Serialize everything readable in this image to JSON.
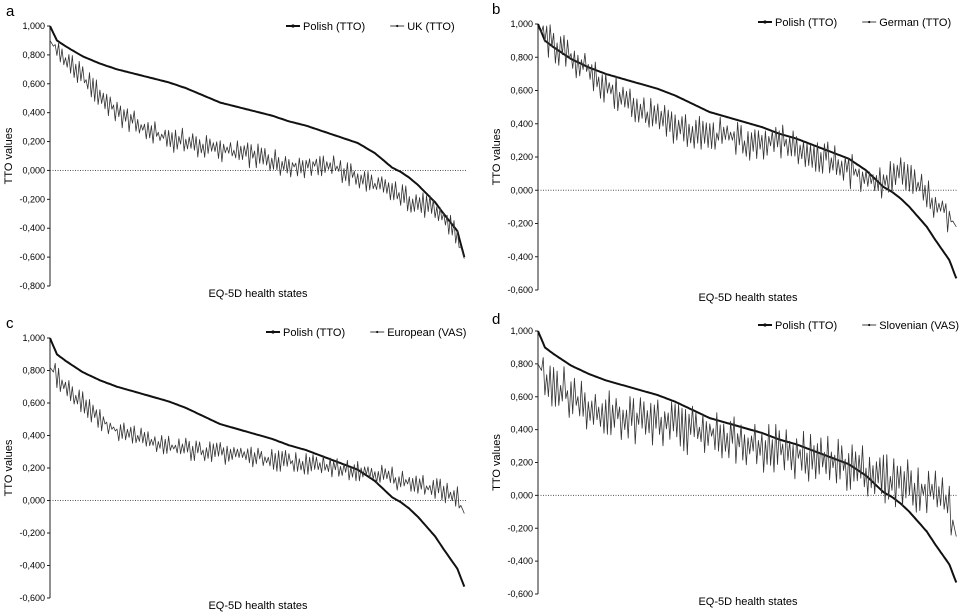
{
  "chart_data": [
    {
      "panel": "a",
      "type": "line",
      "xlabel": "EQ-5D health states",
      "ylabel": "TTO values",
      "ylim": [
        -0.8,
        1.0
      ],
      "yticks": [
        "1,000",
        "0,800",
        "0,600",
        "0,400",
        "0,200",
        "0,000",
        "-0,200",
        "-0,400",
        "-0,600",
        "-0,800"
      ],
      "grid": false,
      "legend_position": "top-right",
      "series": [
        {
          "name": "Polish (TTO)",
          "style": "thick",
          "x": [
            1,
            5,
            10,
            20,
            30,
            40,
            50,
            60,
            70,
            80,
            90,
            100,
            110,
            120,
            130,
            140,
            150,
            160,
            170,
            180,
            190,
            200,
            205,
            210,
            215,
            220,
            225,
            230,
            234,
            238,
            242
          ],
          "values": [
            1.0,
            0.9,
            0.86,
            0.79,
            0.74,
            0.7,
            0.67,
            0.64,
            0.61,
            0.57,
            0.52,
            0.47,
            0.44,
            0.41,
            0.38,
            0.34,
            0.31,
            0.27,
            0.23,
            0.19,
            0.12,
            0.02,
            -0.01,
            -0.05,
            -0.1,
            -0.16,
            -0.22,
            -0.3,
            -0.36,
            -0.42,
            -0.6
          ]
        },
        {
          "name": "UK (TTO)",
          "style": "thin",
          "x": [
            1,
            5,
            10,
            20,
            30,
            40,
            50,
            60,
            70,
            80,
            90,
            100,
            110,
            120,
            130,
            140,
            150,
            160,
            170,
            180,
            190,
            200,
            210,
            220,
            230,
            238,
            242
          ],
          "values": [
            0.9,
            0.82,
            0.77,
            0.64,
            0.52,
            0.4,
            0.33,
            0.26,
            0.22,
            0.2,
            0.16,
            0.15,
            0.12,
            0.1,
            0.07,
            0.04,
            0.03,
            0.05,
            0.0,
            -0.05,
            -0.1,
            -0.15,
            -0.2,
            -0.25,
            -0.32,
            -0.45,
            -0.61
          ]
        }
      ]
    },
    {
      "panel": "b",
      "type": "line",
      "xlabel": "EQ-5D health states",
      "ylabel": "TTO values",
      "ylim": [
        -0.6,
        1.0
      ],
      "yticks": [
        "1,000",
        "0,800",
        "0,600",
        "0,400",
        "0,200",
        "0,000",
        "-0,200",
        "-0,400",
        "-0,600"
      ],
      "grid": false,
      "legend_position": "top-right",
      "series": [
        {
          "name": "Polish (TTO)",
          "style": "thick",
          "x": [
            1,
            5,
            10,
            20,
            30,
            40,
            50,
            60,
            70,
            80,
            90,
            100,
            110,
            120,
            130,
            140,
            150,
            160,
            170,
            180,
            190,
            200,
            205,
            210,
            215,
            220,
            225,
            230,
            234,
            238,
            242
          ],
          "values": [
            1.0,
            0.9,
            0.86,
            0.79,
            0.74,
            0.7,
            0.67,
            0.64,
            0.61,
            0.57,
            0.52,
            0.47,
            0.44,
            0.41,
            0.38,
            0.34,
            0.31,
            0.27,
            0.23,
            0.19,
            0.12,
            0.02,
            -0.01,
            -0.05,
            -0.1,
            -0.16,
            -0.22,
            -0.3,
            -0.36,
            -0.42,
            -0.53
          ]
        },
        {
          "name": "German (TTO)",
          "style": "thin",
          "x": [
            1,
            5,
            10,
            20,
            30,
            40,
            50,
            60,
            70,
            80,
            90,
            100,
            110,
            120,
            130,
            140,
            150,
            160,
            170,
            180,
            190,
            200,
            210,
            220,
            230,
            238,
            242
          ],
          "values": [
            0.98,
            0.92,
            0.87,
            0.8,
            0.72,
            0.62,
            0.55,
            0.48,
            0.42,
            0.38,
            0.35,
            0.32,
            0.34,
            0.28,
            0.26,
            0.3,
            0.25,
            0.22,
            0.18,
            0.12,
            0.08,
            0.05,
            0.1,
            0.02,
            -0.08,
            -0.15,
            -0.22
          ]
        }
      ]
    },
    {
      "panel": "c",
      "type": "line",
      "xlabel": "EQ-5D health states",
      "ylabel": "TTO values",
      "ylim": [
        -0.6,
        1.0
      ],
      "yticks": [
        "1,000",
        "0,800",
        "0,600",
        "0,400",
        "0,200",
        "0,000",
        "-0,200",
        "-0,400",
        "-0,600"
      ],
      "grid": false,
      "legend_position": "top-right",
      "series": [
        {
          "name": "Polish (TTO)",
          "style": "thick",
          "x": [
            1,
            5,
            10,
            20,
            30,
            40,
            50,
            60,
            70,
            80,
            90,
            100,
            110,
            120,
            130,
            140,
            150,
            160,
            170,
            180,
            190,
            200,
            205,
            210,
            215,
            220,
            225,
            230,
            234,
            238,
            242
          ],
          "values": [
            1.0,
            0.9,
            0.86,
            0.79,
            0.74,
            0.7,
            0.67,
            0.64,
            0.61,
            0.57,
            0.52,
            0.47,
            0.44,
            0.41,
            0.38,
            0.34,
            0.31,
            0.27,
            0.23,
            0.19,
            0.12,
            0.02,
            -0.01,
            -0.05,
            -0.1,
            -0.16,
            -0.22,
            -0.3,
            -0.36,
            -0.42,
            -0.53
          ]
        },
        {
          "name": "European (VAS)",
          "style": "thin",
          "x": [
            1,
            5,
            10,
            20,
            30,
            40,
            50,
            60,
            70,
            80,
            90,
            100,
            110,
            120,
            130,
            140,
            150,
            160,
            170,
            180,
            190,
            200,
            210,
            220,
            230,
            238,
            242
          ],
          "values": [
            0.82,
            0.76,
            0.7,
            0.6,
            0.5,
            0.43,
            0.4,
            0.36,
            0.33,
            0.32,
            0.3,
            0.29,
            0.28,
            0.27,
            0.25,
            0.24,
            0.22,
            0.21,
            0.2,
            0.19,
            0.17,
            0.14,
            0.11,
            0.08,
            0.06,
            0.02,
            -0.08
          ]
        }
      ]
    },
    {
      "panel": "d",
      "type": "line",
      "xlabel": "EQ-5D health states",
      "ylabel": "TTO values",
      "ylim": [
        -0.6,
        1.0
      ],
      "yticks": [
        "1,000",
        "0,800",
        "0,600",
        "0,400",
        "0,200",
        "0,000",
        "-0,200",
        "-0,400",
        "-0,600"
      ],
      "grid": false,
      "legend_position": "top-right",
      "series": [
        {
          "name": "Polish (TTO)",
          "style": "thick",
          "x": [
            1,
            5,
            10,
            20,
            30,
            40,
            50,
            60,
            70,
            80,
            90,
            100,
            110,
            120,
            130,
            140,
            150,
            160,
            170,
            180,
            190,
            200,
            205,
            210,
            215,
            220,
            225,
            230,
            234,
            238,
            242
          ],
          "values": [
            1.0,
            0.9,
            0.86,
            0.79,
            0.74,
            0.7,
            0.67,
            0.64,
            0.61,
            0.57,
            0.52,
            0.47,
            0.44,
            0.41,
            0.38,
            0.34,
            0.31,
            0.27,
            0.23,
            0.19,
            0.12,
            0.02,
            -0.01,
            -0.05,
            -0.1,
            -0.16,
            -0.22,
            -0.3,
            -0.36,
            -0.42,
            -0.53
          ]
        },
        {
          "name": "Slovenian (VAS)",
          "style": "thin",
          "x": [
            1,
            5,
            10,
            20,
            30,
            40,
            50,
            60,
            70,
            80,
            90,
            100,
            110,
            120,
            130,
            140,
            150,
            160,
            170,
            180,
            190,
            200,
            210,
            220,
            230,
            238,
            242
          ],
          "values": [
            0.8,
            0.72,
            0.68,
            0.6,
            0.55,
            0.5,
            0.48,
            0.46,
            0.44,
            0.42,
            0.4,
            0.38,
            0.36,
            0.34,
            0.3,
            0.28,
            0.25,
            0.22,
            0.2,
            0.18,
            0.15,
            0.1,
            0.08,
            0.05,
            0.02,
            -0.05,
            -0.25
          ]
        }
      ]
    }
  ]
}
